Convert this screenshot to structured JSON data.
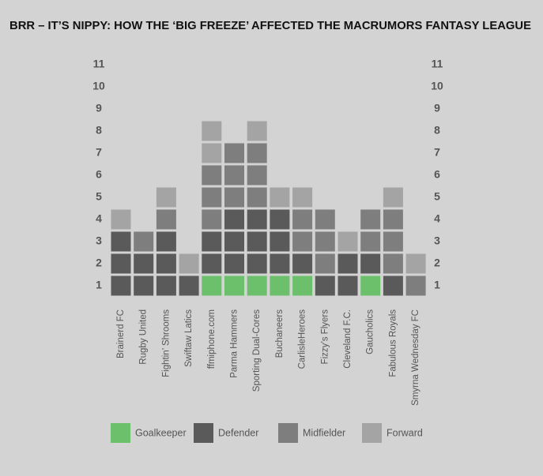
{
  "chart_data": {
    "type": "stacked-unit-bar",
    "title": "BRR – IT’S NIPPY: HOW THE ‘BIG FREEZE’ AFFECTED THE MACRUMORS FANTASY LEAGUE",
    "categories": [
      "Brainerd FC",
      "Rugby United",
      "Fightin’ Shrooms",
      "Swiftaw Latics",
      "ffmiphone.com",
      "Parma Hammers",
      "Sporting Dual-Cores",
      "Buchaneers",
      "CarlisleHeroes",
      "Fizzy’s Flyers",
      "Cleveland F.C.",
      "Gaucholics",
      "Fabulous Royals",
      "Smyrna Wednesday FC"
    ],
    "series": [
      {
        "name": "Goalkeeper",
        "color": "#6cc06c",
        "values": [
          0,
          0,
          0,
          0,
          1,
          1,
          1,
          1,
          1,
          0,
          0,
          1,
          0,
          0
        ]
      },
      {
        "name": "Defender",
        "color": "#5a5a5a",
        "values": [
          3,
          2,
          3,
          1,
          2,
          3,
          3,
          3,
          1,
          1,
          2,
          1,
          1,
          0
        ]
      },
      {
        "name": "Midfielder",
        "color": "#7e7e7e",
        "values": [
          0,
          1,
          1,
          0,
          3,
          3,
          3,
          0,
          2,
          3,
          0,
          2,
          3,
          1
        ]
      },
      {
        "name": "Forward",
        "color": "#a4a4a4",
        "values": [
          1,
          0,
          1,
          1,
          2,
          0,
          1,
          1,
          1,
          0,
          1,
          0,
          1,
          1
        ]
      }
    ],
    "ylim": [
      0,
      11
    ],
    "yticks": [
      1,
      2,
      3,
      4,
      5,
      6,
      7,
      8,
      9,
      10,
      11
    ]
  }
}
